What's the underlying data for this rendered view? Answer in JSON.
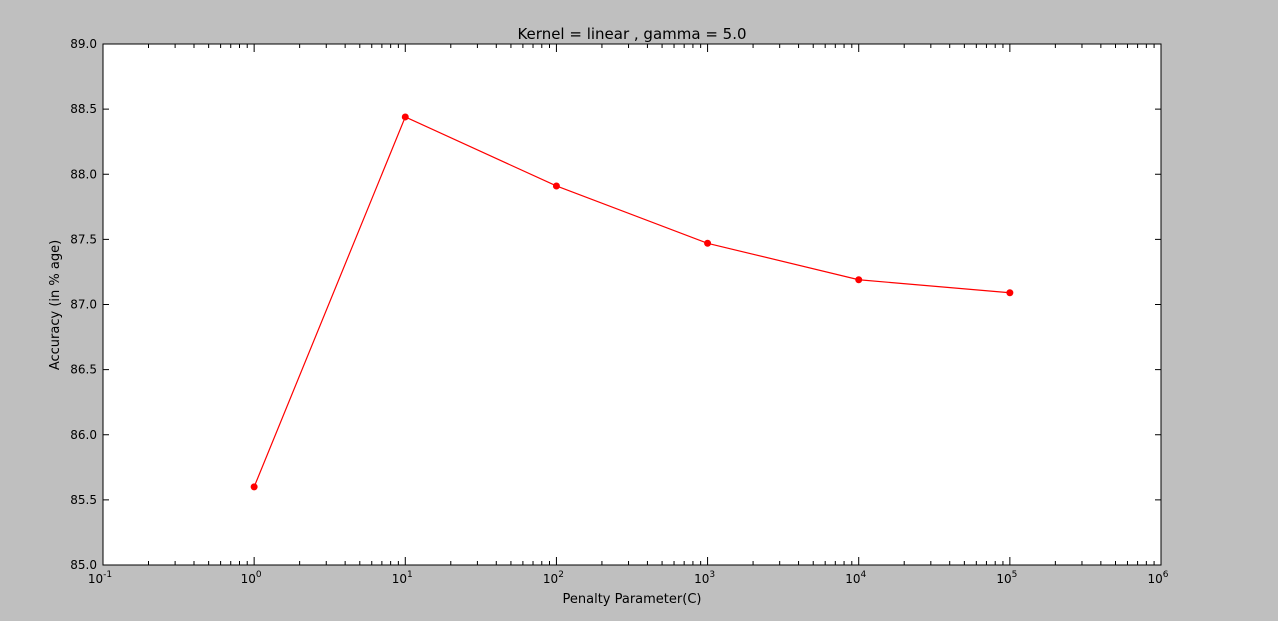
{
  "chart_data": {
    "type": "line",
    "title": "Kernel = linear , gamma = 5.0",
    "xlabel": "Penalty Parameter(C)",
    "ylabel": "Accuracy (in % age)",
    "xscale": "log",
    "xlim": [
      0.1,
      1000000
    ],
    "ylim": [
      85.0,
      89.0
    ],
    "grid": false,
    "legend": "none",
    "x_ticks": [
      {
        "value": 0.1,
        "base": "10",
        "exp": "-1"
      },
      {
        "value": 1,
        "base": "10",
        "exp": "0"
      },
      {
        "value": 10,
        "base": "10",
        "exp": "1"
      },
      {
        "value": 100,
        "base": "10",
        "exp": "2"
      },
      {
        "value": 1000,
        "base": "10",
        "exp": "3"
      },
      {
        "value": 10000,
        "base": "10",
        "exp": "4"
      },
      {
        "value": 100000,
        "base": "10",
        "exp": "5"
      },
      {
        "value": 1000000,
        "base": "10",
        "exp": "6"
      }
    ],
    "y_ticks": [
      "85.0",
      "85.5",
      "86.0",
      "86.5",
      "87.0",
      "87.5",
      "88.0",
      "88.5",
      "89.0"
    ],
    "series": [
      {
        "color": "#ff0000",
        "marker": "circle",
        "x": [
          1,
          10,
          100,
          1000,
          10000,
          100000
        ],
        "y": [
          85.6,
          88.44,
          87.91,
          87.47,
          87.19,
          87.09
        ]
      }
    ]
  }
}
